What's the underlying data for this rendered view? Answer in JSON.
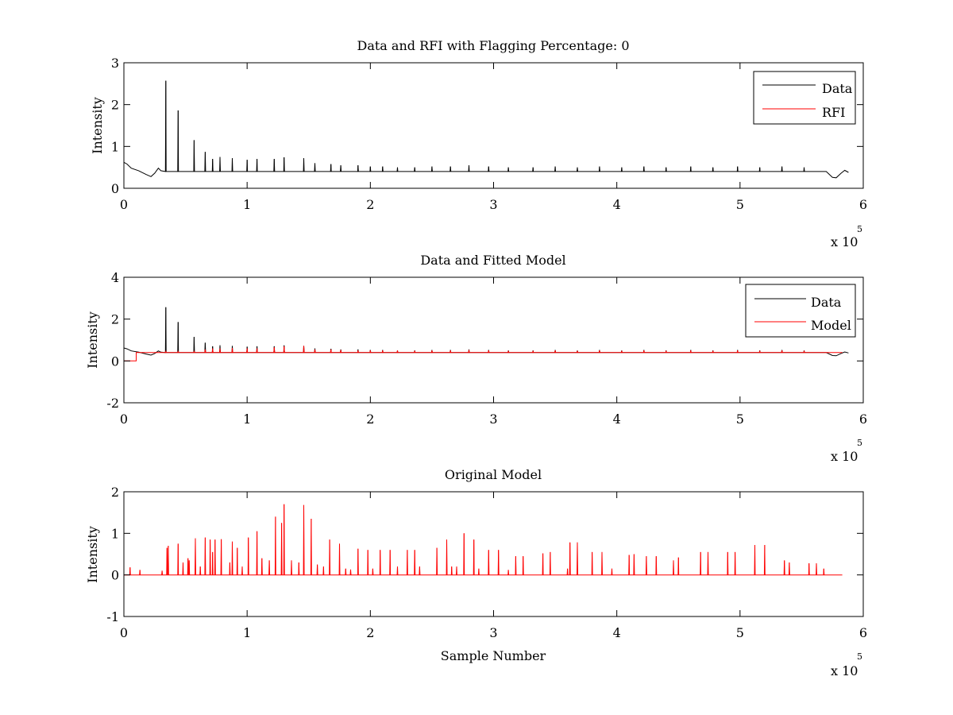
{
  "chart_data": [
    {
      "type": "line",
      "title": "Data and RFI with Flagging Percentage: 0",
      "xlabel": "",
      "ylabel": "Intensity",
      "xlim": [
        0,
        600000
      ],
      "ylim": [
        0,
        3
      ],
      "xticks": [
        0,
        100000,
        200000,
        300000,
        400000,
        500000,
        600000
      ],
      "xticklabels": [
        "0",
        "1",
        "2",
        "3",
        "4",
        "5",
        "6"
      ],
      "yticks": [
        0,
        1,
        2,
        3
      ],
      "yticklabels": [
        "0",
        "1",
        "2",
        "3"
      ],
      "x_exponent_label": "x 10",
      "x_exponent_power": "5",
      "legend": {
        "position": "top-right",
        "entries": [
          "Data",
          "RFI"
        ]
      },
      "series": [
        {
          "name": "Data",
          "color": "#000000",
          "baseline": 0.4,
          "dips": [
            [
              0,
              0.62
            ],
            [
              2500,
              0.58
            ],
            [
              6000,
              0.48
            ],
            [
              12000,
              0.42
            ],
            [
              18000,
              0.33
            ],
            [
              22000,
              0.28
            ],
            [
              25000,
              0.36
            ],
            [
              28000,
              0.48
            ],
            [
              30000,
              0.42
            ],
            [
              570000,
              0.4
            ],
            [
              575000,
              0.26
            ],
            [
              578000,
              0.25
            ],
            [
              582000,
              0.36
            ],
            [
              585000,
              0.43
            ],
            [
              588000,
              0.38
            ]
          ],
          "spikes": [
            [
              34000,
              2.57
            ],
            [
              44000,
              1.86
            ],
            [
              57000,
              1.15
            ],
            [
              66000,
              0.87
            ],
            [
              72000,
              0.7
            ],
            [
              78000,
              0.75
            ],
            [
              88000,
              0.72
            ],
            [
              100000,
              0.68
            ],
            [
              108000,
              0.7
            ],
            [
              122000,
              0.7
            ],
            [
              130000,
              0.74
            ],
            [
              146000,
              0.72
            ],
            [
              155000,
              0.6
            ],
            [
              168000,
              0.58
            ],
            [
              176000,
              0.55
            ],
            [
              190000,
              0.55
            ],
            [
              200000,
              0.52
            ],
            [
              210000,
              0.52
            ],
            [
              222000,
              0.5
            ],
            [
              236000,
              0.5
            ],
            [
              250000,
              0.52
            ],
            [
              265000,
              0.52
            ],
            [
              280000,
              0.55
            ],
            [
              296000,
              0.52
            ],
            [
              312000,
              0.5
            ],
            [
              332000,
              0.5
            ],
            [
              350000,
              0.52
            ],
            [
              368000,
              0.5
            ],
            [
              386000,
              0.52
            ],
            [
              404000,
              0.5
            ],
            [
              422000,
              0.52
            ],
            [
              440000,
              0.5
            ],
            [
              460000,
              0.52
            ],
            [
              478000,
              0.5
            ],
            [
              498000,
              0.52
            ],
            [
              516000,
              0.5
            ],
            [
              534000,
              0.52
            ],
            [
              552000,
              0.5
            ]
          ]
        },
        {
          "name": "RFI",
          "color": "#ff0000",
          "values": []
        }
      ]
    },
    {
      "type": "line",
      "title": "Data and Fitted Model",
      "xlabel": "",
      "ylabel": "Intensity",
      "xlim": [
        0,
        600000
      ],
      "ylim": [
        -2,
        4
      ],
      "xticks": [
        0,
        100000,
        200000,
        300000,
        400000,
        500000,
        600000
      ],
      "xticklabels": [
        "0",
        "1",
        "2",
        "3",
        "4",
        "5",
        "6"
      ],
      "yticks": [
        -2,
        0,
        2,
        4
      ],
      "yticklabels": [
        "-2",
        "0",
        "2",
        "4"
      ],
      "x_exponent_label": "x 10",
      "x_exponent_power": "5",
      "legend": {
        "position": "top-right",
        "entries": [
          "Data",
          "Model"
        ]
      },
      "series": [
        {
          "name": "Data",
          "color": "#000000",
          "baseline": 0.4,
          "dips": [
            [
              0,
              0.62
            ],
            [
              2500,
              0.58
            ],
            [
              6000,
              0.48
            ],
            [
              12000,
              0.42
            ],
            [
              18000,
              0.33
            ],
            [
              22000,
              0.28
            ],
            [
              25000,
              0.36
            ],
            [
              28000,
              0.48
            ],
            [
              30000,
              0.42
            ],
            [
              570000,
              0.4
            ],
            [
              575000,
              0.26
            ],
            [
              578000,
              0.25
            ],
            [
              582000,
              0.36
            ],
            [
              585000,
              0.43
            ],
            [
              588000,
              0.38
            ]
          ],
          "spikes": [
            [
              34000,
              2.57
            ],
            [
              44000,
              1.86
            ],
            [
              57000,
              1.15
            ],
            [
              66000,
              0.87
            ],
            [
              72000,
              0.7
            ],
            [
              78000,
              0.75
            ],
            [
              88000,
              0.72
            ],
            [
              100000,
              0.68
            ],
            [
              108000,
              0.7
            ],
            [
              122000,
              0.7
            ],
            [
              130000,
              0.74
            ],
            [
              146000,
              0.72
            ],
            [
              155000,
              0.6
            ],
            [
              168000,
              0.58
            ],
            [
              176000,
              0.55
            ],
            [
              190000,
              0.55
            ],
            [
              200000,
              0.52
            ],
            [
              210000,
              0.52
            ],
            [
              222000,
              0.5
            ],
            [
              236000,
              0.5
            ],
            [
              250000,
              0.52
            ],
            [
              265000,
              0.52
            ],
            [
              280000,
              0.55
            ],
            [
              296000,
              0.52
            ],
            [
              312000,
              0.5
            ],
            [
              332000,
              0.5
            ],
            [
              350000,
              0.52
            ],
            [
              368000,
              0.5
            ],
            [
              386000,
              0.52
            ],
            [
              404000,
              0.5
            ],
            [
              422000,
              0.52
            ],
            [
              440000,
              0.5
            ],
            [
              460000,
              0.52
            ],
            [
              478000,
              0.5
            ],
            [
              498000,
              0.52
            ],
            [
              516000,
              0.5
            ],
            [
              534000,
              0.52
            ],
            [
              552000,
              0.5
            ]
          ]
        },
        {
          "name": "Model",
          "color": "#ff0000",
          "baseline": 0.4,
          "start_segment": [
            [
              0,
              0.0
            ],
            [
              10000,
              0.0
            ],
            [
              10000,
              0.4
            ]
          ],
          "spikes": [
            [
              34000,
              0.45
            ],
            [
              44000,
              0.45
            ],
            [
              57000,
              0.45
            ],
            [
              66000,
              0.55
            ],
            [
              72000,
              0.6
            ],
            [
              78000,
              0.6
            ],
            [
              88000,
              0.62
            ],
            [
              100000,
              0.6
            ],
            [
              108000,
              0.6
            ],
            [
              122000,
              0.65
            ],
            [
              130000,
              0.7
            ],
            [
              146000,
              0.72
            ],
            [
              155000,
              0.55
            ],
            [
              168000,
              0.55
            ],
            [
              176000,
              0.52
            ],
            [
              190000,
              0.5
            ],
            [
              200000,
              0.5
            ],
            [
              210000,
              0.5
            ],
            [
              222000,
              0.5
            ],
            [
              236000,
              0.48
            ],
            [
              250000,
              0.5
            ],
            [
              265000,
              0.5
            ],
            [
              280000,
              0.52
            ],
            [
              296000,
              0.5
            ],
            [
              312000,
              0.48
            ],
            [
              332000,
              0.48
            ],
            [
              350000,
              0.5
            ],
            [
              368000,
              0.48
            ],
            [
              386000,
              0.5
            ],
            [
              404000,
              0.48
            ],
            [
              422000,
              0.5
            ],
            [
              440000,
              0.48
            ],
            [
              460000,
              0.5
            ],
            [
              478000,
              0.48
            ],
            [
              498000,
              0.5
            ],
            [
              516000,
              0.48
            ],
            [
              534000,
              0.5
            ],
            [
              552000,
              0.48
            ]
          ]
        }
      ]
    },
    {
      "type": "line",
      "title": "Original Model",
      "xlabel": "Sample Number",
      "ylabel": "Intensity",
      "xlim": [
        0,
        600000
      ],
      "ylim": [
        -1,
        2
      ],
      "xticks": [
        0,
        100000,
        200000,
        300000,
        400000,
        500000,
        600000
      ],
      "xticklabels": [
        "0",
        "1",
        "2",
        "3",
        "4",
        "5",
        "6"
      ],
      "yticks": [
        -1,
        0,
        1,
        2
      ],
      "yticklabels": [
        "-1",
        "0",
        "1",
        "2"
      ],
      "x_exponent_label": "x 10",
      "x_exponent_power": "5",
      "series": [
        {
          "name": "",
          "color": "#ff0000",
          "baseline": 0,
          "x_end": 583000,
          "spikes": [
            [
              5000,
              0.18
            ],
            [
              13000,
              0.12
            ],
            [
              31000,
              0.1
            ],
            [
              35000,
              0.65
            ],
            [
              36000,
              0.7
            ],
            [
              44000,
              0.75
            ],
            [
              48000,
              0.3
            ],
            [
              52000,
              0.4
            ],
            [
              53000,
              0.35
            ],
            [
              58000,
              0.88
            ],
            [
              62000,
              0.2
            ],
            [
              66000,
              0.9
            ],
            [
              70000,
              0.85
            ],
            [
              72000,
              0.55
            ],
            [
              74000,
              0.85
            ],
            [
              79000,
              0.86
            ],
            [
              86000,
              0.3
            ],
            [
              88000,
              0.8
            ],
            [
              92000,
              0.65
            ],
            [
              96000,
              0.2
            ],
            [
              101000,
              0.9
            ],
            [
              108000,
              1.05
            ],
            [
              112000,
              0.4
            ],
            [
              118000,
              0.35
            ],
            [
              123000,
              1.4
            ],
            [
              128000,
              1.25
            ],
            [
              130000,
              1.7
            ],
            [
              136000,
              0.35
            ],
            [
              142000,
              0.3
            ],
            [
              146000,
              1.68
            ],
            [
              152000,
              1.35
            ],
            [
              157000,
              0.25
            ],
            [
              162000,
              0.2
            ],
            [
              167000,
              0.85
            ],
            [
              175000,
              0.75
            ],
            [
              180000,
              0.15
            ],
            [
              184000,
              0.13
            ],
            [
              190000,
              0.63
            ],
            [
              198000,
              0.6
            ],
            [
              202000,
              0.15
            ],
            [
              208000,
              0.6
            ],
            [
              216000,
              0.6
            ],
            [
              222000,
              0.2
            ],
            [
              230000,
              0.6
            ],
            [
              236000,
              0.6
            ],
            [
              240000,
              0.2
            ],
            [
              254000,
              0.65
            ],
            [
              262000,
              0.85
            ],
            [
              266000,
              0.2
            ],
            [
              270000,
              0.2
            ],
            [
              276000,
              1.0
            ],
            [
              284000,
              0.85
            ],
            [
              288000,
              0.15
            ],
            [
              296000,
              0.6
            ],
            [
              304000,
              0.6
            ],
            [
              312000,
              0.12
            ],
            [
              318000,
              0.45
            ],
            [
              324000,
              0.45
            ],
            [
              340000,
              0.52
            ],
            [
              346000,
              0.55
            ],
            [
              360000,
              0.15
            ],
            [
              362000,
              0.78
            ],
            [
              368000,
              0.78
            ],
            [
              380000,
              0.55
            ],
            [
              388000,
              0.55
            ],
            [
              396000,
              0.15
            ],
            [
              410000,
              0.48
            ],
            [
              414000,
              0.5
            ],
            [
              424000,
              0.45
            ],
            [
              432000,
              0.45
            ],
            [
              446000,
              0.35
            ],
            [
              450000,
              0.42
            ],
            [
              468000,
              0.55
            ],
            [
              474000,
              0.55
            ],
            [
              490000,
              0.55
            ],
            [
              496000,
              0.55
            ],
            [
              512000,
              0.72
            ],
            [
              520000,
              0.72
            ],
            [
              536000,
              0.35
            ],
            [
              540000,
              0.3
            ],
            [
              556000,
              0.28
            ],
            [
              562000,
              0.28
            ],
            [
              568000,
              0.15
            ]
          ]
        }
      ]
    }
  ]
}
